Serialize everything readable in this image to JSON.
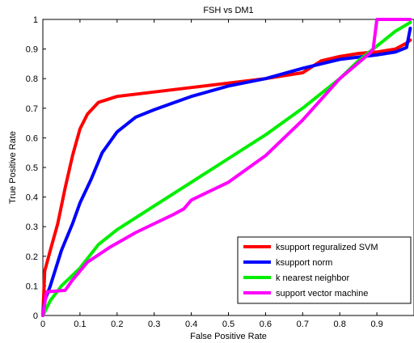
{
  "chart_data": {
    "type": "line",
    "title": "FSH vs DM1",
    "xlabel": "False Positive Rate",
    "ylabel": "True Positive Rate",
    "xlim": [
      0,
      1
    ],
    "ylim": [
      0,
      1
    ],
    "xticks": [
      "0",
      "0.1",
      "0.2",
      "0.3",
      "0.4",
      "0.5",
      "0.6",
      "0.7",
      "0.8",
      "0.9"
    ],
    "yticks": [
      "0",
      "0.1",
      "0.2",
      "0.3",
      "0.4",
      "0.5",
      "0.6",
      "0.7",
      "0.8",
      "0.9",
      "1"
    ],
    "grid": false,
    "legend_position": "bottom-right",
    "series": [
      {
        "name": "ksupport reguralized SVM",
        "color": "#ff0000",
        "x": [
          0,
          0.005,
          0.02,
          0.04,
          0.06,
          0.08,
          0.1,
          0.12,
          0.15,
          0.2,
          0.3,
          0.4,
          0.5,
          0.6,
          0.7,
          0.75,
          0.8,
          0.85,
          0.9,
          0.95,
          0.98,
          0.99
        ],
        "y": [
          0,
          0.15,
          0.22,
          0.31,
          0.43,
          0.54,
          0.63,
          0.68,
          0.72,
          0.74,
          0.755,
          0.77,
          0.785,
          0.8,
          0.82,
          0.86,
          0.875,
          0.885,
          0.89,
          0.9,
          0.92,
          0.93
        ]
      },
      {
        "name": "ksupport norm",
        "color": "#0000ff",
        "x": [
          0,
          0.005,
          0.02,
          0.05,
          0.08,
          0.1,
          0.13,
          0.16,
          0.2,
          0.25,
          0.3,
          0.4,
          0.5,
          0.6,
          0.7,
          0.8,
          0.9,
          0.95,
          0.98,
          0.99
        ],
        "y": [
          0,
          0.05,
          0.1,
          0.22,
          0.31,
          0.38,
          0.46,
          0.55,
          0.62,
          0.67,
          0.695,
          0.74,
          0.775,
          0.8,
          0.835,
          0.865,
          0.88,
          0.89,
          0.905,
          0.97
        ]
      },
      {
        "name": "k nearest neighbor",
        "color": "#00ee00",
        "x": [
          0,
          0.02,
          0.05,
          0.1,
          0.15,
          0.2,
          0.3,
          0.4,
          0.5,
          0.6,
          0.7,
          0.8,
          0.85,
          0.9,
          0.95,
          0.99
        ],
        "y": [
          0,
          0.05,
          0.1,
          0.16,
          0.24,
          0.29,
          0.37,
          0.45,
          0.53,
          0.61,
          0.7,
          0.8,
          0.86,
          0.91,
          0.96,
          0.99
        ]
      },
      {
        "name": "support vector machine",
        "color": "#ff00ff",
        "x": [
          0,
          0.01,
          0.06,
          0.08,
          0.12,
          0.18,
          0.25,
          0.3,
          0.35,
          0.38,
          0.4,
          0.5,
          0.6,
          0.7,
          0.8,
          0.88,
          0.89,
          0.9,
          0.95,
          0.99
        ],
        "y": [
          0,
          0.08,
          0.085,
          0.12,
          0.18,
          0.23,
          0.28,
          0.31,
          0.34,
          0.36,
          0.39,
          0.45,
          0.54,
          0.66,
          0.8,
          0.885,
          0.9,
          1.0,
          1.0,
          1.0
        ]
      }
    ]
  }
}
